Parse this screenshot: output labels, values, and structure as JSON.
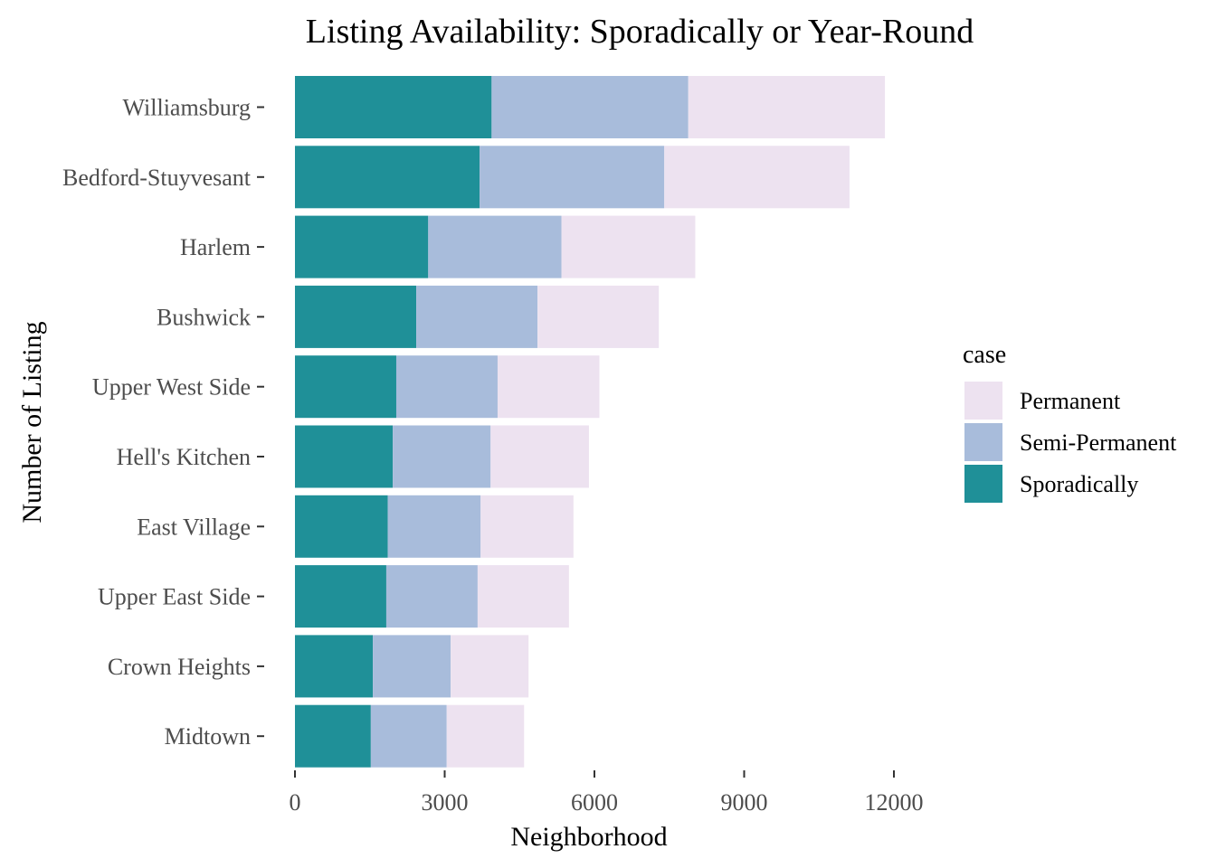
{
  "chart_data": {
    "type": "bar",
    "orientation": "horizontal",
    "stacked": true,
    "title": "Listing Availability: Sporadically or Year-Round",
    "xlabel": "Neighborhood",
    "ylabel": "Number of Listing",
    "xlim": [
      0,
      12000
    ],
    "xticks": [
      0,
      3000,
      6000,
      9000,
      12000
    ],
    "categories": [
      "Williamsburg",
      "Bedford-Stuyvesant",
      "Harlem",
      "Bushwick",
      "Upper West Side",
      "Hell's Kitchen",
      "East Village",
      "Upper East Side",
      "Crown Heights",
      "Midtown"
    ],
    "series": [
      {
        "name": "Sporadically",
        "color": "#1f9098",
        "values": [
          3940,
          3700,
          2670,
          2430,
          2030,
          1960,
          1860,
          1830,
          1560,
          1520
        ]
      },
      {
        "name": "Semi-Permanent",
        "color": "#a8bcdb",
        "values": [
          3940,
          3700,
          2670,
          2430,
          2030,
          1960,
          1860,
          1830,
          1560,
          1520
        ]
      },
      {
        "name": "Permanent",
        "color": "#ede2f0",
        "values": [
          3940,
          3710,
          2680,
          2430,
          2040,
          1970,
          1860,
          1830,
          1560,
          1550
        ]
      }
    ],
    "legend": {
      "title": "case",
      "position": "right",
      "order": [
        "Permanent",
        "Semi-Permanent",
        "Sporadically"
      ]
    },
    "grid": false
  }
}
